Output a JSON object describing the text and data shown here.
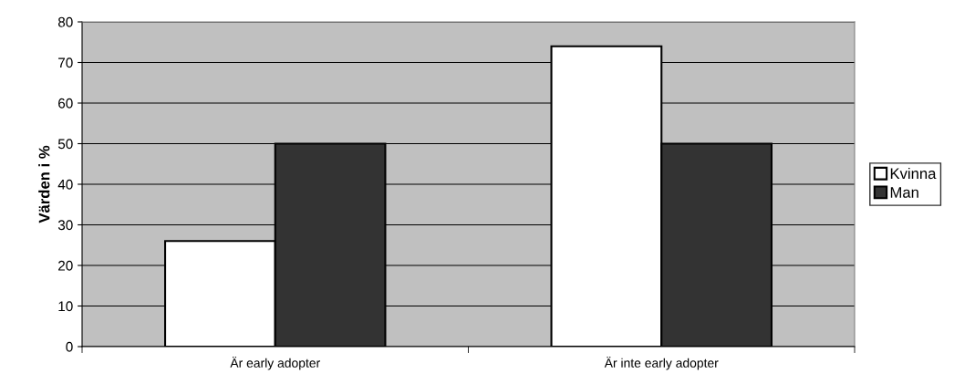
{
  "chart_data": {
    "type": "bar",
    "ylabel": "Värden i %",
    "categories": [
      "Är early adopter",
      "Är inte early adopter"
    ],
    "series": [
      {
        "name": "Kvinna",
        "color": "#ffffff",
        "values": [
          26,
          74
        ]
      },
      {
        "name": "Man",
        "color": "#333333",
        "values": [
          50,
          50
        ]
      }
    ],
    "ylim": [
      0,
      80
    ],
    "yticks": [
      0,
      10,
      20,
      30,
      40,
      50,
      60,
      70,
      80
    ],
    "grid": "y",
    "legend": "right"
  }
}
